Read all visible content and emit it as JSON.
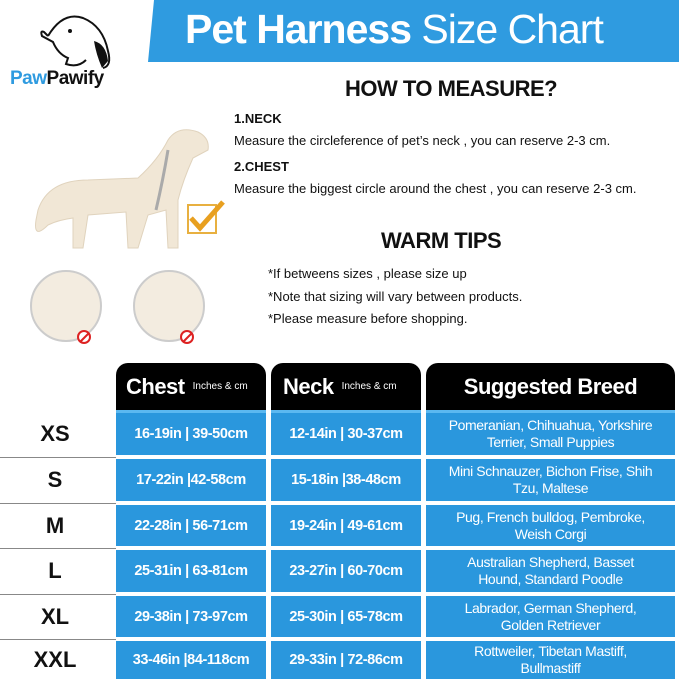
{
  "brand": {
    "logo_part1": "Paw",
    "logo_part2": "Pawify",
    "accent": "#2f9be0"
  },
  "banner": {
    "title_bold": "Pet Harness",
    "title_light": "Size Chart"
  },
  "measure": {
    "heading": "HOW TO MEASURE?",
    "neck_label": "1.NECK",
    "neck_text": "Measure the circleference of pet’s neck , you can reserve 2-3 cm.",
    "chest_label": "2.CHEST",
    "chest_text": "Measure the biggest circle around the chest , you can reserve 2-3 cm."
  },
  "tips": {
    "heading": "WARM TIPS",
    "items": [
      "*If betweens sizes , please size up",
      "*Note that sizing will vary between products.",
      "*Please measure before shopping."
    ]
  },
  "table": {
    "headers": {
      "chest": "Chest",
      "chest_unit": "Inches & cm",
      "neck": "Neck",
      "neck_unit": "Inches & cm",
      "breed": "Suggested Breed"
    },
    "rows": [
      {
        "size": "XS",
        "chest": "16-19in | 39-50cm",
        "neck": "12-14in | 30-37cm",
        "breed": "Pomeranian, Chihuahua, Yorkshire Terrier, Small Puppies"
      },
      {
        "size": "S",
        "chest": "17-22in |42-58cm",
        "neck": "15-18in |38-48cm",
        "breed": "Mini Schnauzer, Bichon Frise, Shih Tzu, Maltese"
      },
      {
        "size": "M",
        "chest": "22-28in | 56-71cm",
        "neck": "19-24in | 49-61cm",
        "breed": "Pug, French bulldog, Pembroke, Weish Corgi"
      },
      {
        "size": "L",
        "chest": "25-31in | 63-81cm",
        "neck": "23-27in | 60-70cm",
        "breed": "Australian Shepherd, Basset Hound, Standard Poodle"
      },
      {
        "size": "XL",
        "chest": "29-38in | 73-97cm",
        "neck": "25-30in | 65-78cm",
        "breed": "Labrador, German Shepherd, Golden Retriever"
      },
      {
        "size": "XXL",
        "chest": "33-46in |84-118cm",
        "neck": "29-33in | 72-86cm",
        "breed": "Rottweiler, Tibetan Mastiff, Bullmastiff"
      }
    ],
    "cell_color": "#2a97dd"
  }
}
